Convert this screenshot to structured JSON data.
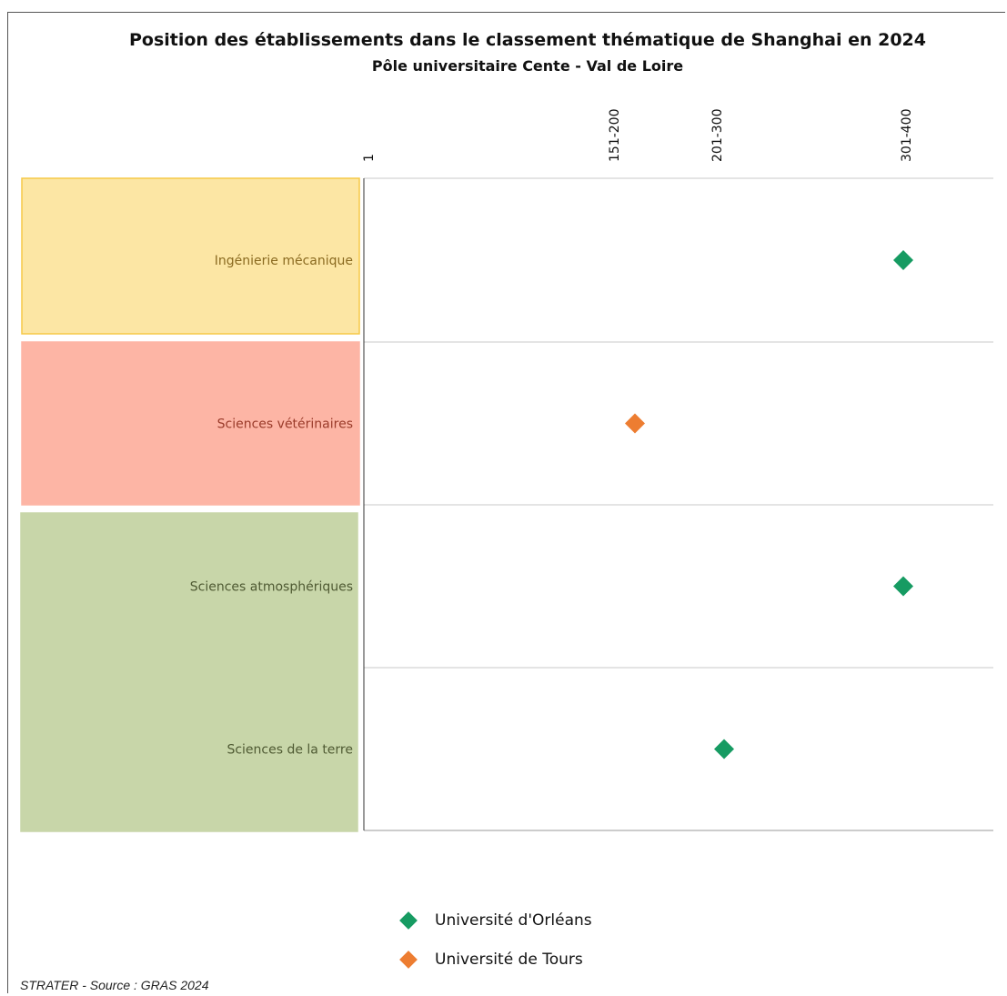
{
  "chart_data": {
    "type": "scatter",
    "title": "Position des établissements dans le classement thématique de Shanghai en 2024",
    "subtitle": "Pôle universitaire Cente - Val de Loire",
    "x_ticks": [
      "1",
      "151-200",
      "201-300",
      "301-400"
    ],
    "categories": [
      {
        "label": "Ingénierie mécanique",
        "fill": "#FCE6A4",
        "border": "#F6C846",
        "text_color": "#8A6A20"
      },
      {
        "label": "Sciences vétérinaires",
        "fill": "#FDB5A5",
        "border": "#FDB5A5",
        "text_color": "#9A3B2A"
      },
      {
        "label": "Sciences atmosphériques",
        "fill": "#C8D6A9",
        "border": "#C8D6A9",
        "text_color": "#4F5A33"
      },
      {
        "label": "Sciences de la terre",
        "fill": "#C8D6A9",
        "border": "#C8D6A9",
        "text_color": "#4F5A33"
      }
    ],
    "series": [
      {
        "name": "Université d'Orléans",
        "color": "#169B62",
        "points": [
          {
            "category": "Ingénierie mécanique",
            "rank": "301-400"
          },
          {
            "category": "Sciences atmosphériques",
            "rank": "301-400"
          },
          {
            "category": "Sciences de la terre",
            "rank": "201-300"
          }
        ]
      },
      {
        "name": "Université de Tours",
        "color": "#ED7D31",
        "points": [
          {
            "category": "Sciences vétérinaires",
            "rank": "151-200"
          }
        ]
      }
    ]
  },
  "source": "STRATER - Source : GRAS 2024"
}
